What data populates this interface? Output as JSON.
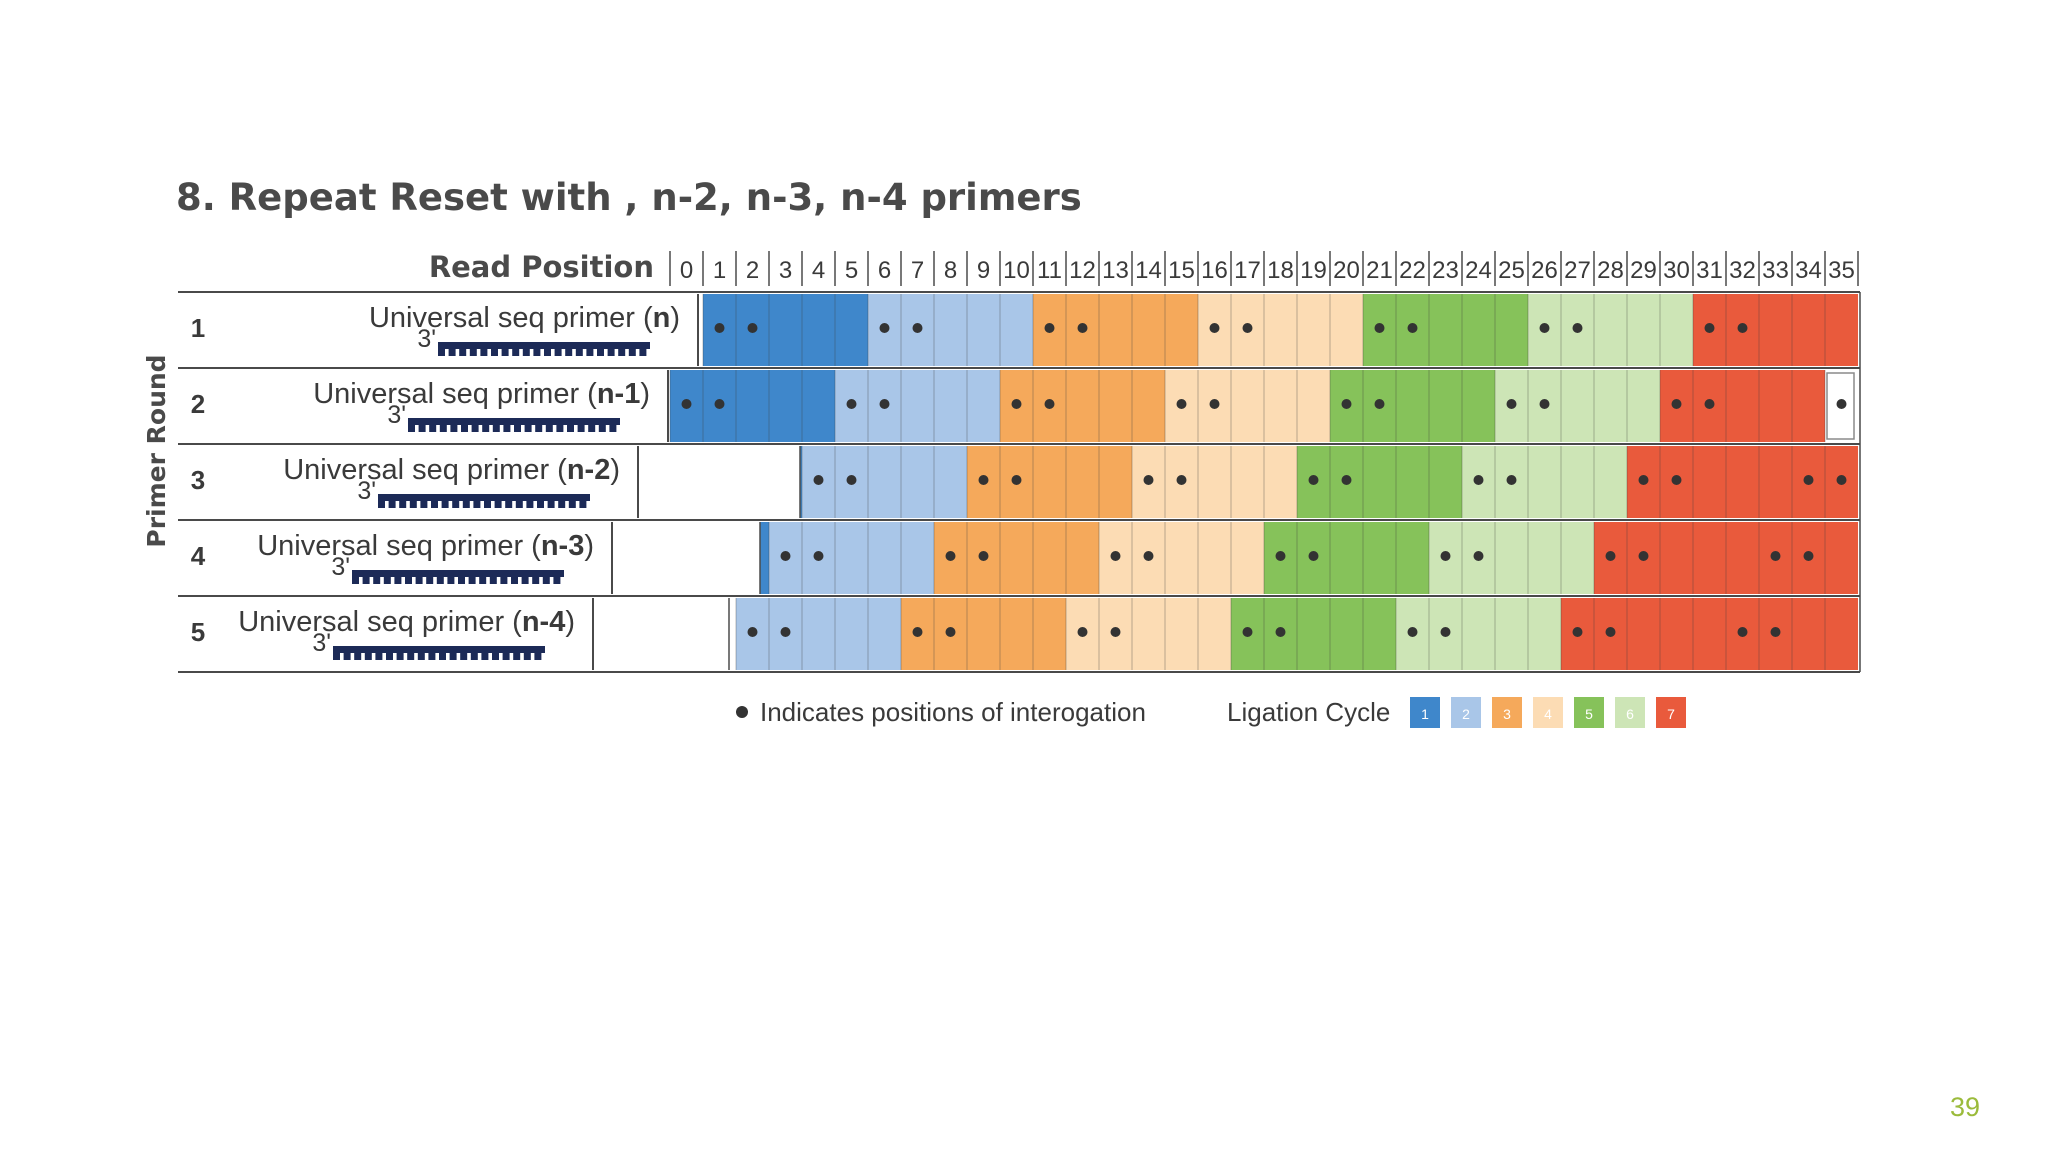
{
  "title": "8. Repeat Reset with , n-2, n-3, n-4 primers",
  "slide_number": "39",
  "header": {
    "read_position_label": "Read Position",
    "positions": [
      "0",
      "1",
      "2",
      "3",
      "4",
      "5",
      "6",
      "7",
      "8",
      "9",
      "10",
      "11",
      "12",
      "13",
      "14",
      "15",
      "16",
      "17",
      "18",
      "19",
      "20",
      "21",
      "22",
      "23",
      "24",
      "25",
      "26",
      "27",
      "28",
      "29",
      "30",
      "31",
      "32",
      "33",
      "34",
      "35"
    ]
  },
  "y_axis_label": "Primer Round",
  "rows": [
    {
      "round": "1",
      "label_prefix": "Universal seq primer (",
      "label_bold": "n",
      "label_suffix": ")",
      "three_prime": "3'",
      "offset": 0
    },
    {
      "round": "2",
      "label_prefix": "Universal seq primer (",
      "label_bold": "n-1",
      "label_suffix": ")",
      "three_prime": "3'",
      "offset": 1
    },
    {
      "round": "3",
      "label_prefix": "Universal seq primer (",
      "label_bold": "n-2",
      "label_suffix": ")",
      "three_prime": "3'",
      "offset": 2
    },
    {
      "round": "4",
      "label_prefix": "Universal seq primer (",
      "label_bold": "n-3",
      "label_suffix": ")",
      "three_prime": "3'",
      "offset": 3
    },
    {
      "round": "5",
      "label_prefix": "Universal seq primer (",
      "label_bold": "n-4",
      "label_suffix": ")",
      "three_prime": "3'",
      "offset": 4
    }
  ],
  "legend": {
    "dot_text": "Indicates positions of interogation",
    "cycle_label": "Ligation Cycle",
    "swatch_numbers": [
      "1",
      "2",
      "3",
      "4",
      "5",
      "6",
      "7"
    ]
  },
  "cycle_colors": [
    {
      "dark": "#3f87cb",
      "light": "#a9c6e8"
    },
    {
      "dark": "#f5a95b",
      "light": "#fcdcb4"
    },
    {
      "dark": "#86c25a",
      "light": "#cde5b6"
    },
    {
      "dark": "#e95a3c",
      "light": "#e95a3c"
    }
  ],
  "colors": {
    "dot": "#333333",
    "primer_bar": "#1c2a57",
    "grid_line": "#4a4a4a"
  }
}
